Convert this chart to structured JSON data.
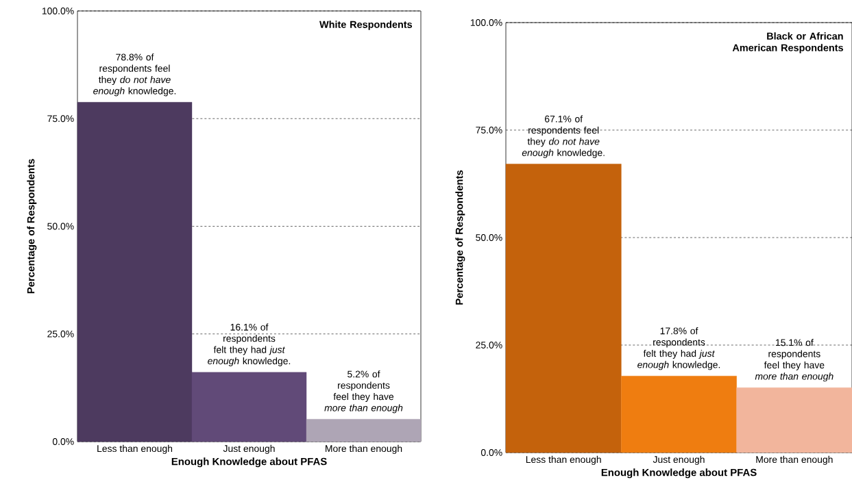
{
  "chart_data": [
    {
      "type": "bar",
      "title": "White Respondents",
      "xlabel": "Enough Knowledge about PFAS",
      "ylabel": "Percentage of Respondents",
      "categories": [
        "Less than enough",
        "Just enough",
        "More than enough"
      ],
      "values": [
        78.8,
        16.1,
        5.2
      ],
      "colors": [
        "#4d3a5f",
        "#614a78",
        "#aea5b5"
      ],
      "ylim": [
        0,
        100
      ],
      "yticks": [
        {
          "value": 0,
          "label": "0.0%"
        },
        {
          "value": 25,
          "label": "25.0%"
        },
        {
          "value": 50,
          "label": "50.0%"
        },
        {
          "value": 75,
          "label": "75.0%"
        },
        {
          "value": 100,
          "label": "100.0%"
        }
      ],
      "grid": "y",
      "annotations": [
        "78.8% of respondents feel they *do not have enough* knowledge.",
        "16.1% of respondents felt they had *just enough* knowledge.",
        "5.2% of respondents feel they have *more than enough*"
      ]
    },
    {
      "type": "bar",
      "title": "Black or African American Respondents",
      "xlabel": "Enough Knowledge about PFAS",
      "ylabel": "Percentage of Respondents",
      "categories": [
        "Less than enough",
        "Just enough",
        "More than enough"
      ],
      "values": [
        67.1,
        17.8,
        15.1
      ],
      "colors": [
        "#c4620c",
        "#ef7d10",
        "#f2b59c"
      ],
      "ylim": [
        0,
        100
      ],
      "yticks": [
        {
          "value": 0,
          "label": "0.0%"
        },
        {
          "value": 25,
          "label": "25.0%"
        },
        {
          "value": 50,
          "label": "50.0%"
        },
        {
          "value": 75,
          "label": "75.0%"
        },
        {
          "value": 100,
          "label": "100.0%"
        }
      ],
      "grid": "y",
      "annotations": [
        "67.1% of respondents feel they *do not have enough* knowledge.",
        "17.8% of respondents felt they had *just enough* knowledge.",
        "15.1% of respondents feel they have *more than enough*"
      ]
    }
  ]
}
